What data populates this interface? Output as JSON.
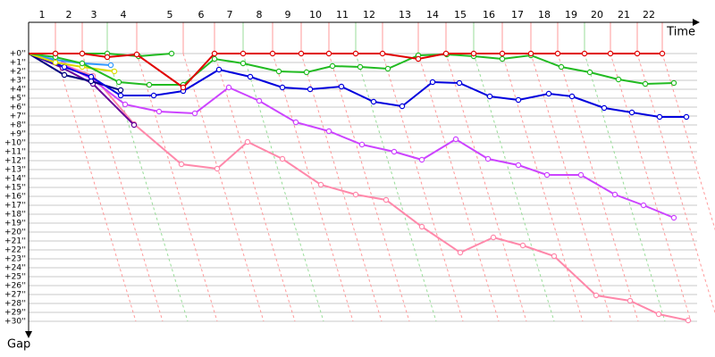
{
  "chart_data": {
    "type": "line",
    "x_label": "Time",
    "y_label": "Gap",
    "grid": true,
    "y_inverted": true,
    "xlim": [
      0,
      748
    ],
    "ylim": [
      0,
      30
    ],
    "xticks": [
      {
        "value": 30,
        "label": "1"
      },
      {
        "value": 60,
        "label": "2"
      },
      {
        "value": 88,
        "label": "3"
      },
      {
        "value": 121,
        "label": "4"
      },
      {
        "value": 173,
        "label": "5"
      },
      {
        "value": 208,
        "label": "6"
      },
      {
        "value": 240,
        "label": "7"
      },
      {
        "value": 273,
        "label": "8"
      },
      {
        "value": 305,
        "label": "9"
      },
      {
        "value": 336,
        "label": "10"
      },
      {
        "value": 366,
        "label": "11"
      },
      {
        "value": 396,
        "label": "12"
      },
      {
        "value": 436,
        "label": "13"
      },
      {
        "value": 467,
        "label": "14"
      },
      {
        "value": 498,
        "label": "15"
      },
      {
        "value": 530,
        "label": "16"
      },
      {
        "value": 562,
        "label": "17"
      },
      {
        "value": 592,
        "label": "18"
      },
      {
        "value": 622,
        "label": "19"
      },
      {
        "value": 651,
        "label": "20"
      },
      {
        "value": 681,
        "label": "21"
      },
      {
        "value": 709,
        "label": "22"
      }
    ],
    "yticks": [
      {
        "value": 0,
        "label": "+0''"
      },
      {
        "value": 1,
        "label": "+1''"
      },
      {
        "value": 2,
        "label": "+2''"
      },
      {
        "value": 3,
        "label": "+3''"
      },
      {
        "value": 4,
        "label": "+4''"
      },
      {
        "value": 5,
        "label": "+5''"
      },
      {
        "value": 6,
        "label": "+6''"
      },
      {
        "value": 7,
        "label": "+7''"
      },
      {
        "value": 8,
        "label": "+8''"
      },
      {
        "value": 9,
        "label": "+9''"
      },
      {
        "value": 10,
        "label": "+10''"
      },
      {
        "value": 11,
        "label": "+11''"
      },
      {
        "value": 12,
        "label": "+12''"
      },
      {
        "value": 13,
        "label": "+13''"
      },
      {
        "value": 14,
        "label": "+14''"
      },
      {
        "value": 15,
        "label": "+15''"
      },
      {
        "value": 16,
        "label": "+16''"
      },
      {
        "value": 17,
        "label": "+17''"
      },
      {
        "value": 18,
        "label": "+18''"
      },
      {
        "value": 19,
        "label": "+19''"
      },
      {
        "value": 20,
        "label": "+20''"
      },
      {
        "value": 21,
        "label": "+21''"
      },
      {
        "value": 22,
        "label": "+22''"
      },
      {
        "value": 23,
        "label": "+23''"
      },
      {
        "value": 24,
        "label": "+24''"
      },
      {
        "value": 25,
        "label": "+25''"
      },
      {
        "value": 26,
        "label": "+26''"
      },
      {
        "value": 27,
        "label": "+27''"
      },
      {
        "value": 28,
        "label": "+28''"
      },
      {
        "value": 29,
        "label": "+29''"
      },
      {
        "value": 30,
        "label": "+30''"
      }
    ],
    "series": [
      {
        "color": "#ff88aa",
        "x": [
          0,
          40,
          72,
          118,
          171,
          211,
          245,
          284,
          327,
          366,
          400,
          440,
          483,
          520,
          553,
          588,
          635,
          673,
          705,
          738
        ],
        "values": [
          0,
          1.3,
          2.5,
          7.9,
          12.4,
          12.9,
          9.9,
          11.8,
          14.7,
          15.8,
          16.4,
          19.4,
          22.3,
          20.6,
          21.5,
          22.7,
          27.1,
          27.7,
          29.2,
          29.9
        ]
      },
      {
        "color": "#cc44ff",
        "x": [
          0,
          38,
          70,
          108,
          146,
          186,
          224,
          258,
          299,
          336,
          373,
          409,
          440,
          478,
          514,
          548,
          580,
          618,
          656,
          688,
          722
        ],
        "values": [
          0,
          1.2,
          2.8,
          5.7,
          6.5,
          6.7,
          3.8,
          5.3,
          7.7,
          8.7,
          10.2,
          11.0,
          11.9,
          9.6,
          11.8,
          12.5,
          13.6,
          13.6,
          15.8,
          17.0,
          18.4
        ]
      },
      {
        "color": "#660099",
        "x": [
          0,
          38,
          72,
          118
        ],
        "values": [
          0,
          1.6,
          3.4,
          8.0
        ]
      },
      {
        "color": "#000080",
        "x": [
          0,
          40,
          70,
          103
        ],
        "values": [
          0,
          2.4,
          3.1,
          4.1
        ]
      },
      {
        "color": "#0000dd",
        "x": [
          0,
          40,
          70,
          103,
          140,
          173,
          213,
          248,
          284,
          315,
          350,
          386,
          418,
          452,
          482,
          516,
          548,
          582,
          608,
          644,
          675,
          706,
          736
        ],
        "values": [
          0,
          1.5,
          2.6,
          4.7,
          4.7,
          4.2,
          1.8,
          2.6,
          3.8,
          4.0,
          3.7,
          5.4,
          5.9,
          3.2,
          3.3,
          4.8,
          5.2,
          4.5,
          4.8,
          6.1,
          6.6,
          7.1,
          7.1
        ]
      },
      {
        "color": "#3399ff",
        "x": [
          0,
          30,
          60,
          92
        ],
        "values": [
          0,
          0.7,
          1.1,
          1.3
        ]
      },
      {
        "color": "#dddd00",
        "x": [
          0,
          30,
          60,
          96
        ],
        "values": [
          0,
          1.0,
          1.5,
          2.0
        ]
      },
      {
        "color": "#22bb22",
        "x": [
          0,
          30,
          60,
          101,
          135,
          173,
          208,
          240,
          280,
          311,
          340,
          371,
          402,
          436,
          468,
          498,
          530,
          562,
          596,
          628,
          660,
          690,
          722
        ],
        "values": [
          0,
          0.4,
          1.1,
          3.2,
          3.5,
          3.5,
          0.6,
          1.1,
          2.0,
          2.1,
          1.4,
          1.5,
          1.7,
          0.2,
          0.1,
          0.3,
          0.6,
          0.2,
          1.5,
          2.1,
          2.9,
          3.4,
          3.3
        ]
      },
      {
        "color": "#22bb22",
        "x": [
          0,
          30,
          60,
          88,
          123,
          160
        ],
        "values": [
          0,
          0,
          0,
          0,
          0.3,
          0
        ]
      },
      {
        "color": "#e00000",
        "x": [
          0,
          30,
          60,
          88,
          121,
          173,
          208,
          240,
          273,
          305,
          336,
          366,
          396,
          436,
          467,
          498,
          530,
          562,
          592,
          622,
          651,
          681,
          709
        ],
        "values": [
          0,
          0,
          0,
          0.4,
          0.1,
          3.8,
          0,
          0,
          0,
          0,
          0,
          0,
          0,
          0.6,
          0,
          0,
          0,
          0,
          0,
          0,
          0,
          0,
          0
        ]
      }
    ]
  }
}
